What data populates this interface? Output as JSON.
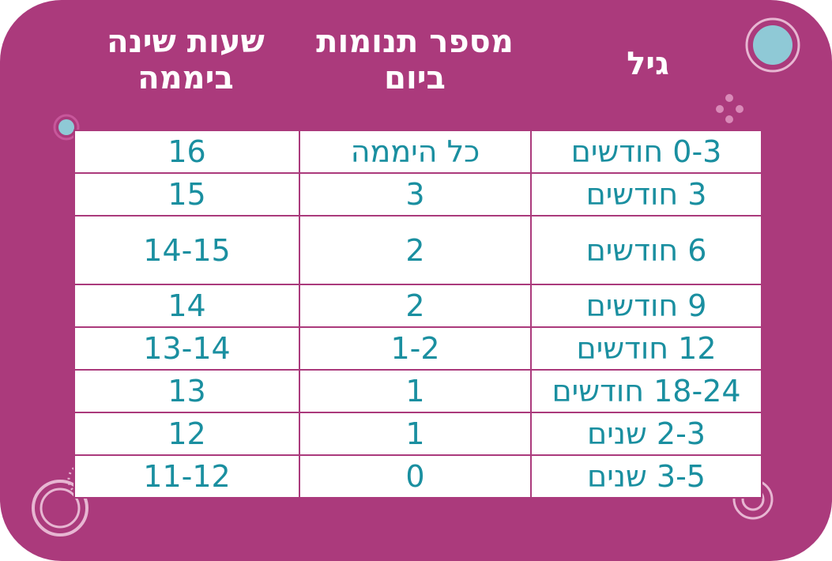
{
  "headers": {
    "age": "גיל",
    "naps": "מספר תנומות ביום",
    "hours": "שעות שינה ביממה"
  },
  "rows": [
    {
      "age": "0-3 חודשים",
      "naps": "כל היממה",
      "hours": "16"
    },
    {
      "age": "3 חודשים",
      "naps": "3",
      "hours": "15"
    },
    {
      "age": "6 חודשים",
      "naps": "2",
      "hours": "14-15"
    },
    {
      "age": "9 חודשים",
      "naps": "2",
      "hours": "14"
    },
    {
      "age": "12 חודשים",
      "naps": "1-2",
      "hours": "13-14"
    },
    {
      "age": "18-24 חודשים",
      "naps": "1",
      "hours": "13"
    },
    {
      "age": "2-3 שנים",
      "naps": "1",
      "hours": "12"
    },
    {
      "age": "3-5 שנים",
      "naps": "0",
      "hours": "11-12"
    }
  ],
  "colors": {
    "background": "#ab3a7c",
    "header_text": "#ffffff",
    "cell_text": "#1a8fa0",
    "table_bg": "#ffffff",
    "accent_circle": "#8fc9d6"
  }
}
